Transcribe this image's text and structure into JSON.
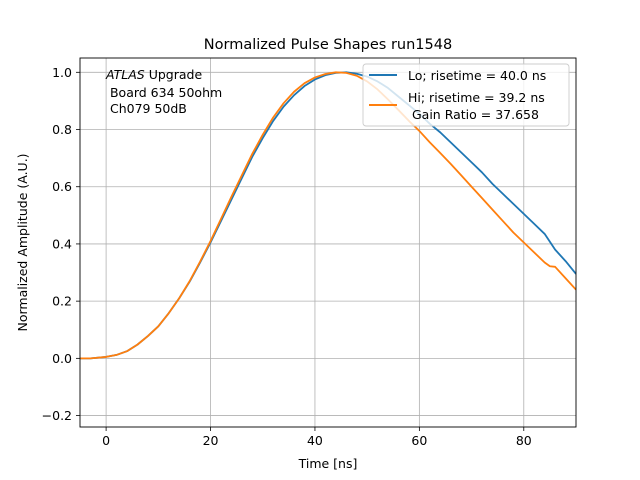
{
  "chart_data": {
    "type": "line",
    "title": "Normalized Pulse Shapes run1548",
    "xlabel": "Time [ns]",
    "ylabel": "Normalized Amplitude (A.U.)",
    "xlim": [
      -5,
      90
    ],
    "ylim": [
      -0.24,
      1.05
    ],
    "xticks": [
      0,
      20,
      40,
      60,
      80
    ],
    "yticks": [
      -0.2,
      0.0,
      0.2,
      0.4,
      0.6,
      0.8,
      1.0
    ],
    "xtick_labels": [
      "0",
      "20",
      "40",
      "60",
      "80"
    ],
    "ytick_labels": [
      "−0.2",
      "0.0",
      "0.2",
      "0.4",
      "0.6",
      "0.8",
      "1.0"
    ],
    "grid": true,
    "legend_position": "top-right",
    "annotation": {
      "italic": "ATLAS",
      "rest": " Upgrade",
      "line2": " Board 634 50ohm",
      "line3": " Ch079 50dB"
    },
    "legend_extra": " Gain Ratio = 37.658",
    "series": [
      {
        "name": "Lo; risetime = 40.0 ns",
        "color": "#1f77b4",
        "x": [
          -5,
          -3,
          0,
          2,
          4,
          6,
          8,
          10,
          12,
          14,
          16,
          18,
          20,
          22,
          24,
          26,
          28,
          30,
          32,
          34,
          36,
          38,
          40,
          42,
          44,
          46,
          48,
          50,
          52,
          54,
          56,
          58,
          60,
          62,
          64,
          66,
          68,
          70,
          72,
          74,
          76,
          78,
          80,
          82,
          84,
          86,
          88,
          90
        ],
        "y": [
          0.0,
          0.0,
          0.005,
          0.012,
          0.025,
          0.048,
          0.078,
          0.112,
          0.158,
          0.21,
          0.268,
          0.335,
          0.405,
          0.48,
          0.555,
          0.63,
          0.705,
          0.77,
          0.83,
          0.88,
          0.92,
          0.952,
          0.975,
          0.99,
          0.998,
          1.0,
          0.995,
          0.985,
          0.968,
          0.945,
          0.915,
          0.885,
          0.855,
          0.82,
          0.79,
          0.755,
          0.72,
          0.685,
          0.65,
          0.61,
          0.575,
          0.54,
          0.505,
          0.47,
          0.435,
          0.38,
          0.34,
          0.295
        ]
      },
      {
        "name": "Hi; risetime = 39.2 ns",
        "color": "#ff7f0e",
        "x": [
          -5,
          -3,
          0,
          2,
          4,
          6,
          8,
          10,
          12,
          14,
          16,
          18,
          20,
          22,
          24,
          26,
          28,
          30,
          32,
          34,
          36,
          38,
          40,
          42,
          44,
          46,
          48,
          50,
          52,
          54,
          56,
          58,
          60,
          62,
          64,
          66,
          68,
          70,
          72,
          74,
          76,
          78,
          80,
          82,
          84,
          85,
          86,
          88,
          90
        ],
        "y": [
          0.0,
          0.0,
          0.005,
          0.012,
          0.025,
          0.048,
          0.078,
          0.112,
          0.158,
          0.21,
          0.27,
          0.338,
          0.41,
          0.487,
          0.565,
          0.64,
          0.715,
          0.782,
          0.842,
          0.892,
          0.932,
          0.962,
          0.982,
          0.994,
          1.0,
          0.998,
          0.988,
          0.968,
          0.94,
          0.905,
          0.868,
          0.83,
          0.795,
          0.755,
          0.718,
          0.68,
          0.64,
          0.6,
          0.56,
          0.52,
          0.48,
          0.44,
          0.405,
          0.37,
          0.335,
          0.322,
          0.32,
          0.28,
          0.24
        ]
      }
    ]
  }
}
